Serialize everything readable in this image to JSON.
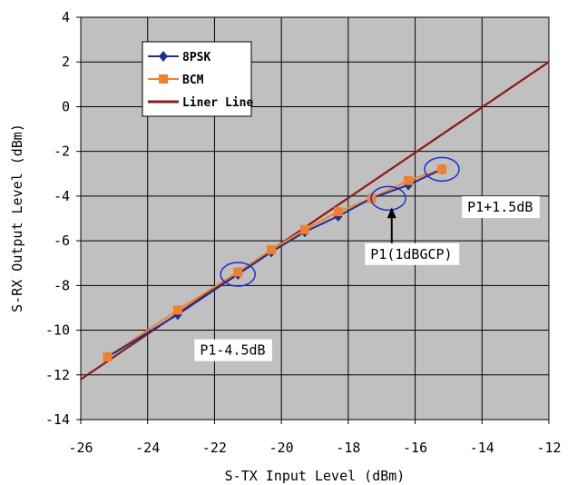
{
  "chart_data": {
    "type": "line",
    "title": "",
    "xlabel": "S-TX Input Level (dBm)",
    "ylabel": "S-RX Output Level (dBm)",
    "xlim": [
      -26,
      -12
    ],
    "ylim": [
      -14,
      4
    ],
    "xticks": [
      "-26",
      "-24",
      "-22",
      "-20",
      "-18",
      "-16",
      "-14",
      "-12"
    ],
    "yticks": [
      "4",
      "2",
      "0",
      "-2",
      "-4",
      "-6",
      "-8",
      "-10",
      "-12",
      "-14"
    ],
    "grid": true,
    "legend_position": "top-left",
    "series": [
      {
        "name": "8PSK",
        "marker": "diamond",
        "color": "#1f2f8c",
        "x": [
          -25.2,
          -23.1,
          -21.3,
          -20.3,
          -19.3,
          -18.3,
          -17.3,
          -16.2,
          -15.2
        ],
        "y": [
          -11.2,
          -9.3,
          -7.5,
          -6.5,
          -5.6,
          -4.9,
          -4.1,
          -3.5,
          -2.8
        ]
      },
      {
        "name": "BCM",
        "marker": "square",
        "color": "#f08030",
        "x": [
          -25.2,
          -23.1,
          -21.3,
          -20.3,
          -19.3,
          -18.3,
          -17.3,
          -16.2,
          -15.2
        ],
        "y": [
          -11.2,
          -9.1,
          -7.4,
          -6.4,
          -5.5,
          -4.7,
          -4.1,
          -3.3,
          -2.8
        ]
      },
      {
        "name": "Liner Line",
        "marker": "none",
        "color": "#8b1a1a",
        "x": [
          -26,
          -12
        ],
        "y": [
          -12.2,
          2.0
        ]
      }
    ],
    "annotations": [
      {
        "text": "P1+1.5dB",
        "x": -14.6,
        "y": -4.7
      },
      {
        "text": "P1(1dBGCP)",
        "x": -17.5,
        "y": -6.8
      },
      {
        "text": "P1-4.5dB",
        "x": -22.6,
        "y": -11.1
      }
    ],
    "highlight_ellipses": [
      {
        "x": -15.2,
        "y": -2.8
      },
      {
        "x": -16.8,
        "y": -4.1
      },
      {
        "x": -21.3,
        "y": -7.5
      }
    ],
    "arrow": {
      "from": [
        -16.7,
        -4.5
      ],
      "to": [
        -16.7,
        -6.2
      ]
    }
  }
}
